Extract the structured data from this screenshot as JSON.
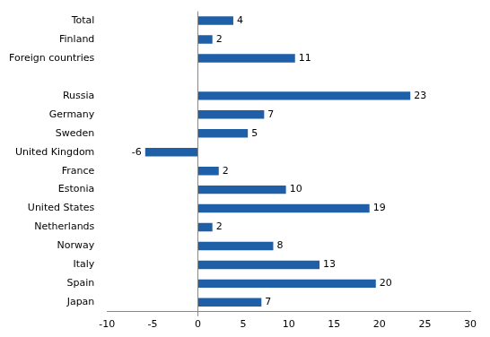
{
  "chart_data": {
    "type": "bar",
    "orientation": "horizontal",
    "categories": [
      "Total",
      "Finland",
      "Foreign countries",
      null,
      "Russia",
      "Germany",
      "Sweden",
      "United Kingdom",
      "France",
      "Estonia",
      "United States",
      "Netherlands",
      "Norway",
      "Italy",
      "Spain",
      "Japan"
    ],
    "values": [
      3.9,
      1.6,
      10.7,
      null,
      23.4,
      7.3,
      5.5,
      -5.8,
      2.3,
      9.7,
      18.9,
      1.6,
      8.3,
      13.4,
      19.6,
      7.0
    ],
    "value_labels": [
      "4",
      "2",
      "11",
      null,
      "23",
      "7",
      "5",
      "-6",
      "2",
      "10",
      "19",
      "2",
      "8",
      "13",
      "20",
      "7"
    ],
    "color": "#1f5fa8",
    "xlim": [
      -10,
      30
    ],
    "xticks": [
      -10,
      -5,
      0,
      5,
      10,
      15,
      20,
      25,
      30
    ],
    "grid": false,
    "data_labels": true
  }
}
